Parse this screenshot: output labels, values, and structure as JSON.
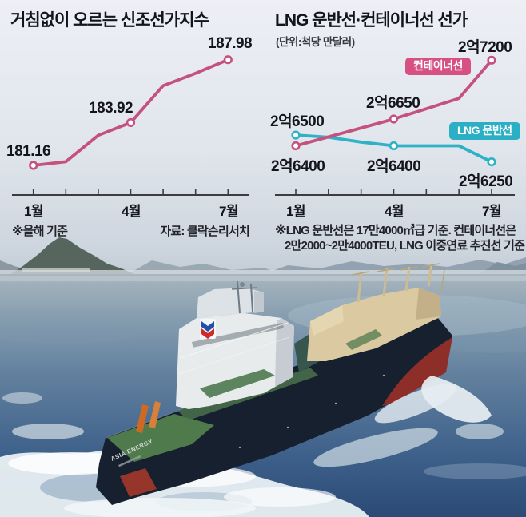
{
  "left_chart": {
    "title": "거침없이 오르는 신조선가지수",
    "point_labels": {
      "jan": "181.16",
      "apr": "183.92",
      "jul": "187.98"
    },
    "month_labels": [
      "1월",
      "4월",
      "7월"
    ],
    "footnote": "※올해 기준",
    "source": "자료: 클락슨리서치"
  },
  "right_chart": {
    "title": "LNG 운반선·컨테이너선 선가",
    "unit": "(단위:척당 만달러)",
    "legend": {
      "container": "컨테이너선",
      "lng": "LNG 운반선"
    },
    "labels": {
      "jan_lng": "2억6500",
      "jan_container": "2억6400",
      "apr_container": "2억6650",
      "apr_lng": "2억6400",
      "jul_container": "2억7200",
      "jul_lng": "2억6250"
    },
    "month_labels": [
      "1월",
      "4월",
      "7월"
    ],
    "footnote_line1": "※LNG 운반선은 17만4000㎥급 기준. 컨테이너선은",
    "footnote_line2": "2만2000~2만4000TEU, LNG 이중연료 추진선 기준"
  },
  "photo": {
    "ship_name": "ASIA ENERGY"
  },
  "colors": {
    "container_line": "#c5527e",
    "lng_line": "#2fb2c6",
    "container_badge": "#d65182",
    "lng_badge": "#2aafc5",
    "axis": "#3b3b42",
    "text": "#14141c"
  },
  "chart_data": [
    {
      "type": "line",
      "title": "거침없이 오르는 신조선가지수",
      "x": [
        1,
        2,
        3,
        4,
        5,
        6,
        7
      ],
      "x_unit": "월",
      "tick_labels": [
        "1월",
        "4월",
        "7월"
      ],
      "series": [
        {
          "name": "신조선가지수",
          "color": "#c5527e",
          "values": [
            181.16,
            181.4,
            183.1,
            183.92,
            186.3,
            187.1,
            187.98
          ]
        }
      ],
      "labeled_points": {
        "1월": 181.16,
        "4월": 183.92,
        "7월": 187.98
      },
      "ylim": [
        180,
        189
      ],
      "grid": false,
      "note": "※올해 기준",
      "source": "자료: 클락슨리서치"
    },
    {
      "type": "line",
      "title": "LNG 운반선·컨테이너선 선가",
      "unit": "만달러/척",
      "x": [
        1,
        2,
        3,
        4,
        5,
        6,
        7
      ],
      "x_unit": "월",
      "tick_labels": [
        "1월",
        "4월",
        "7월"
      ],
      "series": [
        {
          "name": "LNG 운반선",
          "color": "#2fb2c6",
          "values": [
            26500,
            26480,
            26435,
            26400,
            26400,
            26400,
            26250
          ]
        },
        {
          "name": "컨테이너선",
          "color": "#c5527e",
          "values": [
            26400,
            26483,
            26566,
            26650,
            26746,
            26843,
            27200
          ]
        }
      ],
      "labeled_points": {
        "컨테이너선": {
          "1월": "2억6400",
          "4월": "2억6650",
          "7월": "2억7200"
        },
        "LNG 운반선": {
          "1월": "2억6500",
          "4월": "2억6400",
          "7월": "2억6250"
        }
      },
      "ylim": [
        26100,
        27300
      ],
      "grid": false,
      "legend_position": "inline-badges"
    }
  ]
}
